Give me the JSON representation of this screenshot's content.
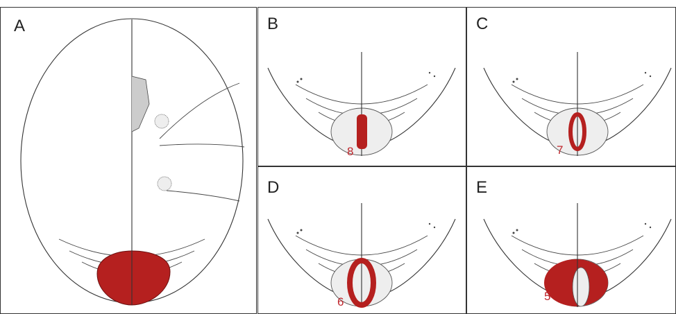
{
  "panels": [
    {
      "label": "A"
    },
    {
      "label": "B",
      "number": 8
    },
    {
      "label": "C",
      "number": 7
    },
    {
      "label": "D",
      "number": 6
    },
    {
      "label": "E",
      "number": 5
    }
  ]
}
